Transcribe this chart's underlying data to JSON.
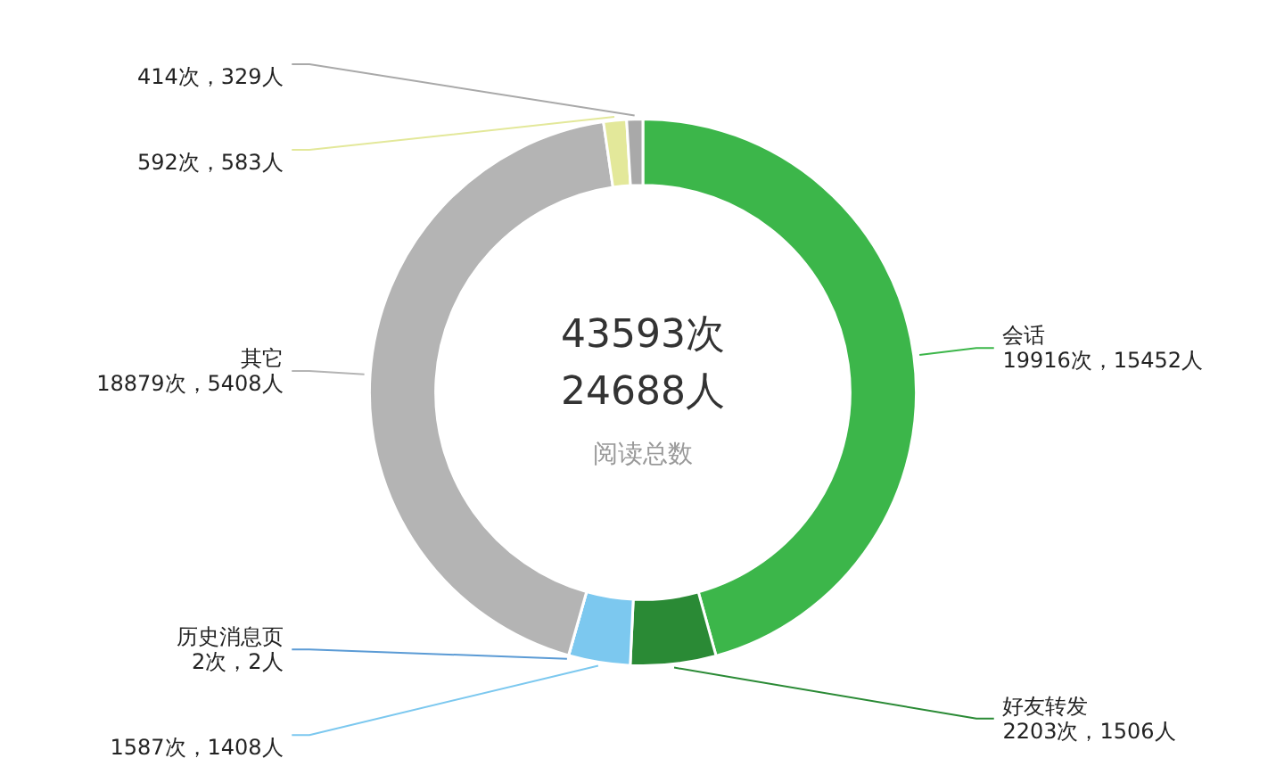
{
  "chart_data": {
    "type": "donut",
    "categories": [
      "会话",
      "好友转发",
      null,
      "历史消息页",
      "其它",
      null,
      null
    ],
    "values": [
      19916,
      2203,
      1587,
      2,
      18879,
      592,
      414
    ],
    "colors": [
      "#3cb64a",
      "#2a8a35",
      "#7cc8ef",
      "#5b9bd5",
      "#b4b4b4",
      "#e3e89a",
      "#a9a9a9"
    ],
    "value_labels": [
      "19916次，15452人",
      "2203次，1506人",
      "1587次，1408人",
      "2次，2人",
      "18879次，5408人",
      "592次，583人",
      "414次，329人"
    ],
    "annotations": [
      "43593次",
      "24688人",
      "阅读总数"
    ]
  }
}
